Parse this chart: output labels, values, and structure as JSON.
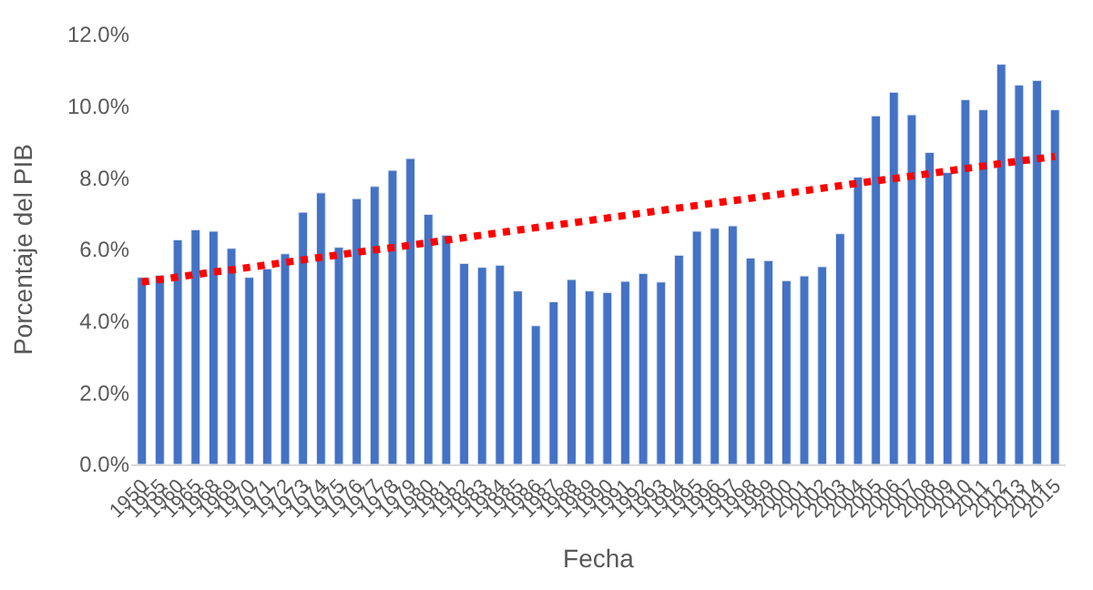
{
  "chart_data": {
    "type": "bar",
    "xlabel": "Fecha",
    "ylabel": "Porcentaje del PIB",
    "categories": [
      "1950",
      "1955",
      "1960",
      "1965",
      "1968",
      "1969",
      "1970",
      "1971",
      "1972",
      "1973",
      "1974",
      "1975",
      "1976",
      "1977",
      "1978",
      "1979",
      "1980",
      "1981",
      "1982",
      "1983",
      "1984",
      "1985",
      "1986",
      "1987",
      "1988",
      "1989",
      "1990",
      "1991",
      "1992",
      "1993",
      "1994",
      "1995",
      "1996",
      "1997",
      "1998",
      "1999",
      "2000",
      "2001",
      "2002",
      "2003",
      "2004",
      "2005",
      "2006",
      "2007",
      "2008",
      "2009",
      "2010",
      "2011",
      "2012",
      "2013",
      "2014",
      "2015"
    ],
    "series": [
      {
        "color": "#4472c4",
        "values": [
          5.22,
          5.28,
          6.27,
          6.55,
          6.51,
          6.03,
          5.22,
          5.46,
          5.88,
          7.04,
          7.58,
          6.06,
          7.42,
          7.76,
          8.21,
          8.54,
          6.98,
          6.4,
          5.61,
          5.5,
          5.56,
          4.84,
          3.87,
          4.54,
          5.16,
          4.84,
          4.8,
          5.11,
          5.33,
          5.09,
          5.84,
          6.51,
          6.59,
          6.66,
          5.76,
          5.69,
          5.13,
          5.26,
          5.52,
          6.44,
          8.02,
          9.73,
          10.39,
          9.76,
          8.71,
          8.15,
          10.18,
          9.9,
          11.17,
          10.59,
          10.72,
          9.9
        ]
      },
      {
        "type": "line",
        "color": "#ff0000",
        "line_style": "dotted",
        "marker": "none",
        "values": [
          5.09,
          5.16,
          5.23,
          5.3,
          5.37,
          5.43,
          5.5,
          5.57,
          5.64,
          5.71,
          5.78,
          5.85,
          5.92,
          5.99,
          6.05,
          6.12,
          6.19,
          6.26,
          6.33,
          6.4,
          6.47,
          6.54,
          6.61,
          6.68,
          6.74,
          6.81,
          6.88,
          6.95,
          7.02,
          7.09,
          7.16,
          7.23,
          7.3,
          7.36,
          7.43,
          7.5,
          7.57,
          7.64,
          7.71,
          7.78,
          7.85,
          7.92,
          7.98,
          8.05,
          8.12,
          8.19,
          8.26,
          8.33,
          8.4,
          8.47,
          8.53,
          8.6
        ]
      }
    ],
    "ylim": [
      0,
      12
    ],
    "yticks": [
      {
        "value": 0,
        "label": "0.0%"
      },
      {
        "value": 2,
        "label": "2.0%"
      },
      {
        "value": 4,
        "label": "4.0%"
      },
      {
        "value": 6,
        "label": "6.0%"
      },
      {
        "value": 8,
        "label": "8.0%"
      },
      {
        "value": 10,
        "label": "10.0%"
      },
      {
        "value": 12,
        "label": "12.0%"
      }
    ],
    "grid": false
  }
}
